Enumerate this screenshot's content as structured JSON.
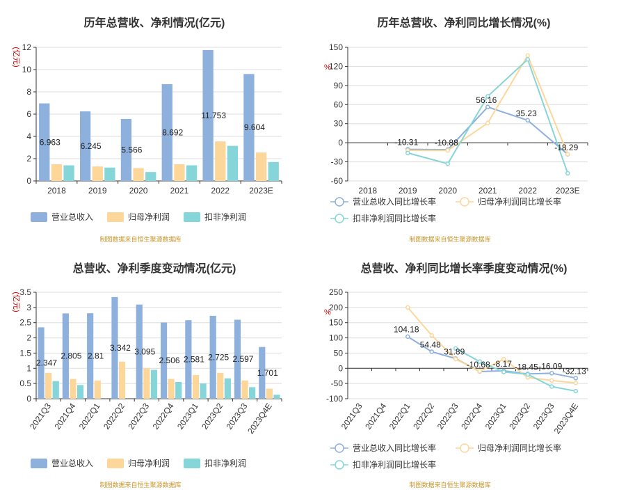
{
  "source_note": "制图数据来自恒生聚源数据库",
  "colors": {
    "revenue": "#8eb0dd",
    "net_profit": "#fdd69a",
    "deducted_profit": "#86d5d8",
    "axis": "#333333",
    "grid": "#dddddd",
    "unit": "#cc0000"
  },
  "chart_data": [
    {
      "id": "annual-amounts",
      "type": "bar",
      "title": "历年总营收、净利情况(亿元)",
      "ylabel": "(亿元)",
      "ylim": [
        0,
        12
      ],
      "yticks": [
        0,
        2,
        4,
        6,
        8,
        10,
        12
      ],
      "categories": [
        "2018",
        "2019",
        "2020",
        "2021",
        "2022",
        "2023E"
      ],
      "series": [
        {
          "name": "营业总收入",
          "values": [
            6.963,
            6.245,
            5.566,
            8.692,
            11.753,
            9.604
          ]
        },
        {
          "name": "归母净利润",
          "values": [
            1.5,
            1.3,
            1.15,
            1.5,
            3.55,
            2.55
          ]
        },
        {
          "name": "扣非净利润",
          "values": [
            1.4,
            1.2,
            0.8,
            1.4,
            3.15,
            1.7
          ]
        }
      ],
      "data_labels": [
        "6.963",
        "6.245",
        "5.566",
        "8.692",
        "11.753",
        "9.604"
      ]
    },
    {
      "id": "annual-growth",
      "type": "line",
      "title": "历年总营收、净利同比增长情况(%)",
      "ylabel": "%",
      "ylim": [
        -60,
        150
      ],
      "yticks": [
        -60,
        -30,
        0,
        30,
        60,
        90,
        120,
        150
      ],
      "categories": [
        "2018",
        "2019",
        "2020",
        "2021",
        "2022",
        "2023E"
      ],
      "series": [
        {
          "name": "营业总收入同比增长率",
          "values": [
            null,
            -10.31,
            -10.88,
            56.16,
            35.23,
            -18.29
          ]
        },
        {
          "name": "归母净利润同比增长率",
          "values": [
            null,
            -12,
            -12,
            31,
            137,
            -18
          ]
        },
        {
          "name": "扣非净利润同比增长率",
          "values": [
            null,
            -16,
            -33,
            73,
            131,
            -48
          ]
        }
      ],
      "data_labels": [
        "",
        "-10.31",
        "-10.88",
        "56.16",
        "35.23",
        "-18.29"
      ]
    },
    {
      "id": "quarterly-amounts",
      "type": "bar",
      "title": "总营收、净利季度变动情况(亿元)",
      "ylabel": "(亿元)",
      "ylim": [
        0,
        3.5
      ],
      "yticks": [
        0,
        0.5,
        1,
        1.5,
        2,
        2.5,
        3,
        3.5
      ],
      "categories": [
        "2021Q3",
        "2021Q4",
        "2022Q1",
        "2022Q2",
        "2022Q3",
        "2022Q4",
        "2023Q1",
        "2023Q2",
        "2023Q3",
        "2023Q4E"
      ],
      "series": [
        {
          "name": "营业总收入",
          "values": [
            2.347,
            2.805,
            2.81,
            3.342,
            3.095,
            2.506,
            2.581,
            2.725,
            2.597,
            1.701
          ]
        },
        {
          "name": "归母净利润",
          "values": [
            0.85,
            0.65,
            0.6,
            1.22,
            1.0,
            0.65,
            0.78,
            0.85,
            0.6,
            0.33
          ]
        },
        {
          "name": "扣非净利润",
          "values": [
            0.58,
            0.45,
            0.0,
            0.0,
            0.95,
            0.55,
            0.5,
            0.67,
            0.38,
            0.13
          ]
        }
      ],
      "data_labels": [
        "2.347",
        "2.805",
        "2.81",
        "3.342",
        "3.095",
        "2.506",
        "2.581",
        "2.725",
        "2.597",
        "1.701"
      ]
    },
    {
      "id": "quarterly-growth",
      "type": "line",
      "title": "总营收、净利同比增长率季度变动情况(%)",
      "ylabel": "%",
      "ylim": [
        -100,
        250
      ],
      "yticks": [
        -100,
        -50,
        0,
        50,
        100,
        150,
        200,
        250
      ],
      "categories": [
        "2021Q3",
        "2021Q4",
        "2022Q1",
        "2022Q2",
        "2022Q3",
        "2022Q4",
        "2023Q1",
        "2023Q2",
        "2023Q3",
        "2023Q4E"
      ],
      "series": [
        {
          "name": "营业总收入同比增长率",
          "values": [
            null,
            null,
            104.18,
            54.48,
            31.89,
            -10.68,
            -8.17,
            -18.45,
            -16.09,
            -32.13
          ]
        },
        {
          "name": "归母净利润同比增长率",
          "values": [
            null,
            null,
            200,
            108,
            30,
            -10,
            30,
            -30,
            -40,
            -48
          ]
        },
        {
          "name": "扣非净利润同比增长率",
          "values": [
            null,
            null,
            null,
            null,
            65,
            22,
            -12,
            -20,
            -60,
            -75
          ]
        }
      ],
      "data_labels": [
        "",
        "",
        "104.18",
        "54.48",
        "31.89",
        "-10.68",
        "-8.17",
        "-18.45",
        "-16.09",
        "-32.13"
      ]
    }
  ]
}
